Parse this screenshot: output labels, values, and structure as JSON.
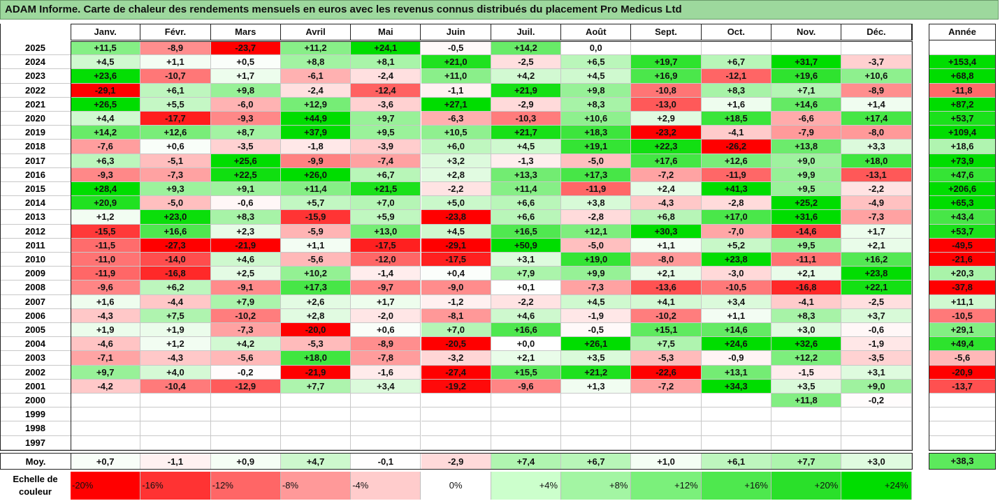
{
  "title": "ADAM Informe. Carte de chaleur des rendements mensuels en euros avec les revenus connus distribués du placement Pro Medicus Ltd",
  "chart_data": {
    "type": "heatmap",
    "title": "ADAM Informe. Carte de chaleur des rendements mensuels en euros avec les revenus connus distribués du placement Pro Medicus Ltd",
    "months": [
      "Janv.",
      "Févr.",
      "Mars",
      "Avril",
      "Mai",
      "Juin",
      "Juil.",
      "Août",
      "Sept.",
      "Oct.",
      "Nov.",
      "Déc."
    ],
    "year_header": "Année",
    "rows": [
      {
        "year": "2025",
        "m": [
          "+11,5",
          "-8,9",
          "-23,7",
          "+11,2",
          "+24,1",
          "-0,5",
          "+14,2",
          "0,0",
          "",
          "",
          "",
          ""
        ],
        "annual": ""
      },
      {
        "year": "2024",
        "m": [
          "+4,5",
          "+1,1",
          "+0,5",
          "+8,8",
          "+8,1",
          "+21,0",
          "-2,5",
          "+6,5",
          "+19,7",
          "+6,7",
          "+31,7",
          "-3,7"
        ],
        "annual": "+153,4"
      },
      {
        "year": "2023",
        "m": [
          "+23,6",
          "-10,7",
          "+1,7",
          "-6,1",
          "-2,4",
          "+11,0",
          "+4,2",
          "+4,5",
          "+16,9",
          "-12,1",
          "+19,6",
          "+10,6"
        ],
        "annual": "+68,8"
      },
      {
        "year": "2022",
        "m": [
          "-29,1",
          "+6,1",
          "+9,8",
          "-2,4",
          "-12,4",
          "-1,1",
          "+21,9",
          "+9,8",
          "-10,8",
          "+8,3",
          "+7,1",
          "-8,9"
        ],
        "annual": "-11,8"
      },
      {
        "year": "2021",
        "m": [
          "+26,5",
          "+5,5",
          "-6,0",
          "+12,9",
          "-3,6",
          "+27,1",
          "-2,9",
          "+8,3",
          "-13,0",
          "+1,6",
          "+14,6",
          "+1,4"
        ],
        "annual": "+87,2"
      },
      {
        "year": "2020",
        "m": [
          "+4,4",
          "-17,7",
          "-9,3",
          "+44,9",
          "+9,7",
          "-6,3",
          "-10,3",
          "+10,6",
          "+2,9",
          "+18,5",
          "-6,6",
          "+17,4"
        ],
        "annual": "+53,7"
      },
      {
        "year": "2019",
        "m": [
          "+14,2",
          "+12,6",
          "+8,7",
          "+37,9",
          "+9,5",
          "+10,5",
          "+21,7",
          "+18,3",
          "-23,2",
          "-4,1",
          "-7,9",
          "-8,0"
        ],
        "annual": "+109,4"
      },
      {
        "year": "2018",
        "m": [
          "-7,6",
          "+0,6",
          "-3,5",
          "-1,8",
          "-3,9",
          "+6,0",
          "+4,5",
          "+19,1",
          "+22,3",
          "-26,2",
          "+13,8",
          "+3,3"
        ],
        "annual": "+18,6"
      },
      {
        "year": "2017",
        "m": [
          "+6,3",
          "-5,1",
          "+25,6",
          "-9,9",
          "-7,4",
          "+3,2",
          "-1,3",
          "-5,0",
          "+17,6",
          "+12,6",
          "+9,0",
          "+18,0"
        ],
        "annual": "+73,9"
      },
      {
        "year": "2016",
        "m": [
          "-9,3",
          "-7,3",
          "+22,5",
          "+26,0",
          "+6,7",
          "+2,8",
          "+13,3",
          "+17,3",
          "-7,2",
          "-11,9",
          "+9,9",
          "-13,1"
        ],
        "annual": "+47,6"
      },
      {
        "year": "2015",
        "m": [
          "+28,4",
          "+9,3",
          "+9,1",
          "+11,4",
          "+21,5",
          "-2,2",
          "+11,4",
          "-11,9",
          "+2,4",
          "+41,3",
          "+9,5",
          "-2,2"
        ],
        "annual": "+206,6"
      },
      {
        "year": "2014",
        "m": [
          "+20,9",
          "-5,0",
          "-0,6",
          "+5,7",
          "+7,0",
          "+5,0",
          "+6,6",
          "+3,8",
          "-4,3",
          "-2,8",
          "+25,2",
          "-4,9"
        ],
        "annual": "+65,3"
      },
      {
        "year": "2013",
        "m": [
          "+1,2",
          "+23,0",
          "+8,3",
          "-15,9",
          "+5,9",
          "-23,8",
          "+6,6",
          "-2,8",
          "+6,8",
          "+17,0",
          "+31,6",
          "-7,3"
        ],
        "annual": "+43,4"
      },
      {
        "year": "2012",
        "m": [
          "-15,5",
          "+16,6",
          "+2,3",
          "-5,9",
          "+13,0",
          "+4,5",
          "+16,5",
          "+12,1",
          "+30,3",
          "-7,0",
          "-14,6",
          "+1,7"
        ],
        "annual": "+53,7"
      },
      {
        "year": "2011",
        "m": [
          "-11,5",
          "-27,3",
          "-21,9",
          "+1,1",
          "-17,5",
          "-29,1",
          "+50,9",
          "-5,0",
          "+1,1",
          "+5,2",
          "+9,5",
          "+2,1"
        ],
        "annual": "-49,5"
      },
      {
        "year": "2010",
        "m": [
          "-11,0",
          "-14,0",
          "+4,6",
          "-5,6",
          "-12,0",
          "-17,5",
          "+3,1",
          "+19,0",
          "-8,0",
          "+23,8",
          "-11,1",
          "+16,2"
        ],
        "annual": "-21,6"
      },
      {
        "year": "2009",
        "m": [
          "-11,9",
          "-16,8",
          "+2,5",
          "+10,2",
          "-1,4",
          "+0,4",
          "+7,9",
          "+9,9",
          "+2,1",
          "-3,0",
          "+2,1",
          "+23,8"
        ],
        "annual": "+20,3"
      },
      {
        "year": "2008",
        "m": [
          "-9,6",
          "+6,2",
          "-9,1",
          "+17,3",
          "-9,7",
          "-9,0",
          "+0,1",
          "-7,3",
          "-13,6",
          "-10,5",
          "-16,8",
          "+22,1"
        ],
        "annual": "-37,8"
      },
      {
        "year": "2007",
        "m": [
          "+1,6",
          "-4,4",
          "+7,9",
          "+2,6",
          "+1,7",
          "-1,2",
          "-2,2",
          "+4,5",
          "+4,1",
          "+3,4",
          "-4,1",
          "-2,5"
        ],
        "annual": "+11,1"
      },
      {
        "year": "2006",
        "m": [
          "-4,3",
          "+7,5",
          "-10,2",
          "+2,8",
          "-2,0",
          "-8,1",
          "+4,6",
          "-1,9",
          "-10,2",
          "+1,1",
          "+8,3",
          "+3,7"
        ],
        "annual": "-10,5"
      },
      {
        "year": "2005",
        "m": [
          "+1,9",
          "+1,9",
          "-7,3",
          "-20,0",
          "+0,6",
          "+7,0",
          "+16,6",
          "-0,5",
          "+15,1",
          "+14,6",
          "+3,0",
          "-0,6"
        ],
        "annual": "+29,1"
      },
      {
        "year": "2004",
        "m": [
          "-4,6",
          "+1,2",
          "+4,2",
          "-5,3",
          "-8,9",
          "-20,5",
          "+0,0",
          "+26,1",
          "+7,5",
          "+24,6",
          "+32,6",
          "-1,9"
        ],
        "annual": "+49,4"
      },
      {
        "year": "2003",
        "m": [
          "-7,1",
          "-4,3",
          "-5,6",
          "+18,0",
          "-7,8",
          "-3,2",
          "+2,1",
          "+3,5",
          "-5,3",
          "-0,9",
          "+12,2",
          "-3,5"
        ],
        "annual": "-5,6"
      },
      {
        "year": "2002",
        "m": [
          "+9,7",
          "+4,0",
          "-0,2",
          "-21,9",
          "-1,6",
          "-27,4",
          "+15,5",
          "+21,2",
          "-22,6",
          "+13,1",
          "-1,5",
          "+3,1"
        ],
        "annual": "-20,9"
      },
      {
        "year": "2001",
        "m": [
          "-4,2",
          "-10,4",
          "-12,9",
          "+7,7",
          "+3,4",
          "-19,2",
          "-9,6",
          "+1,3",
          "-7,2",
          "+34,3",
          "+3,5",
          "+9,0"
        ],
        "annual": "-13,7"
      },
      {
        "year": "2000",
        "m": [
          "",
          "",
          "",
          "",
          "",
          "",
          "",
          "",
          "",
          "",
          "+11,8",
          "-0,2"
        ],
        "annual": ""
      },
      {
        "year": "1999",
        "m": [
          "",
          "",
          "",
          "",
          "",
          "",
          "",
          "",
          "",
          "",
          "",
          ""
        ],
        "annual": ""
      },
      {
        "year": "1998",
        "m": [
          "",
          "",
          "",
          "",
          "",
          "",
          "",
          "",
          "",
          "",
          "",
          ""
        ],
        "annual": ""
      },
      {
        "year": "1997",
        "m": [
          "",
          "",
          "",
          "",
          "",
          "",
          "",
          "",
          "",
          "",
          "",
          ""
        ],
        "annual": ""
      }
    ],
    "average": {
      "label": "Moy.",
      "m": [
        "+0,7",
        "-1,1",
        "+0,9",
        "+4,7",
        "-0,1",
        "-2,9",
        "+7,4",
        "+6,7",
        "+1,0",
        "+6,1",
        "+7,7",
        "+3,0"
      ],
      "annual": "+38,3"
    },
    "legend": {
      "label_line1": "Echelle de",
      "label_line2": "couleur",
      "steps": [
        {
          "label": "-20%",
          "value": -20,
          "color": "#ff0000"
        },
        {
          "label": "-16%",
          "value": -16,
          "color": "#ff3333"
        },
        {
          "label": "-12%",
          "value": -12,
          "color": "#ff6666"
        },
        {
          "label": "-8%",
          "value": -8,
          "color": "#ff9999"
        },
        {
          "label": "-4%",
          "value": -4,
          "color": "#ffcccc"
        },
        {
          "label": "0%",
          "value": 0,
          "color": "#ffffff"
        },
        {
          "label": "+4%",
          "value": 4,
          "color": "#ccffcc"
        },
        {
          "label": "+8%",
          "value": 8,
          "color": "#a3f5a3"
        },
        {
          "label": "+12%",
          "value": 12,
          "color": "#7bf07b"
        },
        {
          "label": "+16%",
          "value": 16,
          "color": "#4ee84e"
        },
        {
          "label": "+20%",
          "value": 20,
          "color": "#2ae02a"
        },
        {
          "label": "+24%",
          "value": 24,
          "color": "#00dd00"
        }
      ]
    }
  }
}
